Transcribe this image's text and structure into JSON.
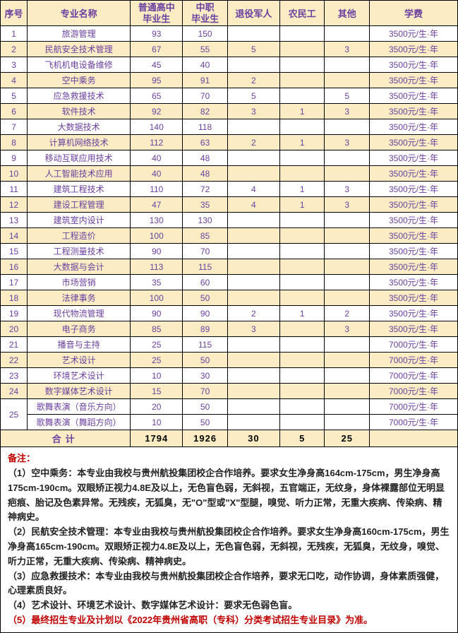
{
  "headers": {
    "idx": "序号",
    "name": "专业名称",
    "c1": "普通高中\n毕业生",
    "c2": "中职\n毕业生",
    "c3": "退役军人",
    "c4": "农民工",
    "c5": "其他",
    "fee": "学费"
  },
  "colors": {
    "header_bg": "#fbecc4",
    "header_text": "#6b3fa0",
    "odd_bg": "#fbecc4",
    "border": "#000000",
    "note_title": "#c00000"
  },
  "rows": [
    {
      "idx": "1",
      "name": "旅游管理",
      "c1": "93",
      "c2": "150",
      "c3": "",
      "c4": "",
      "c5": "",
      "fee": "3500元/生·年",
      "odd": false
    },
    {
      "idx": "2",
      "name": "民航安全技术管理",
      "c1": "67",
      "c2": "55",
      "c3": "5",
      "c4": "",
      "c5": "3",
      "fee": "3500元/生·年",
      "odd": true
    },
    {
      "idx": "3",
      "name": "飞机机电设备维修",
      "c1": "45",
      "c2": "40",
      "c3": "",
      "c4": "",
      "c5": "",
      "fee": "3500元/生·年",
      "odd": false
    },
    {
      "idx": "4",
      "name": "空中乘务",
      "c1": "95",
      "c2": "91",
      "c3": "2",
      "c4": "",
      "c5": "",
      "fee": "3500元/生·年",
      "odd": true
    },
    {
      "idx": "5",
      "name": "应急救援技术",
      "c1": "65",
      "c2": "70",
      "c3": "5",
      "c4": "",
      "c5": "5",
      "fee": "3500元/生·年",
      "odd": false
    },
    {
      "idx": "6",
      "name": "软件技术",
      "c1": "92",
      "c2": "82",
      "c3": "3",
      "c4": "1",
      "c5": "3",
      "fee": "3500元/生·年",
      "odd": true
    },
    {
      "idx": "7",
      "name": "大数据技术",
      "c1": "140",
      "c2": "118",
      "c3": "",
      "c4": "",
      "c5": "",
      "fee": "3500元/生·年",
      "odd": false
    },
    {
      "idx": "8",
      "name": "计算机网络技术",
      "c1": "112",
      "c2": "63",
      "c3": "2",
      "c4": "1",
      "c5": "3",
      "fee": "3500元/生·年",
      "odd": true
    },
    {
      "idx": "9",
      "name": "移动互联应用技术",
      "c1": "40",
      "c2": "48",
      "c3": "",
      "c4": "",
      "c5": "",
      "fee": "3500元/生·年",
      "odd": false
    },
    {
      "idx": "10",
      "name": "人工智能技术应用",
      "c1": "40",
      "c2": "48",
      "c3": "",
      "c4": "",
      "c5": "",
      "fee": "3500元/生·年",
      "odd": true
    },
    {
      "idx": "11",
      "name": "建筑工程技术",
      "c1": "110",
      "c2": "72",
      "c3": "4",
      "c4": "1",
      "c5": "3",
      "fee": "3500元/生·年",
      "odd": false
    },
    {
      "idx": "12",
      "name": "建设工程管理",
      "c1": "47",
      "c2": "35",
      "c3": "4",
      "c4": "1",
      "c5": "3",
      "fee": "3500元/生·年",
      "odd": true
    },
    {
      "idx": "13",
      "name": "建筑室内设计",
      "c1": "130",
      "c2": "130",
      "c3": "",
      "c4": "",
      "c5": "",
      "fee": "3500元/生·年",
      "odd": false
    },
    {
      "idx": "14",
      "name": "工程造价",
      "c1": "100",
      "c2": "85",
      "c3": "",
      "c4": "",
      "c5": "",
      "fee": "3500元/生·年",
      "odd": true
    },
    {
      "idx": "15",
      "name": "工程测量技术",
      "c1": "90",
      "c2": "70",
      "c3": "",
      "c4": "",
      "c5": "",
      "fee": "3500元/生·年",
      "odd": false
    },
    {
      "idx": "16",
      "name": "大数据与会计",
      "c1": "113",
      "c2": "115",
      "c3": "",
      "c4": "",
      "c5": "",
      "fee": "3500元/生·年",
      "odd": true
    },
    {
      "idx": "17",
      "name": "市场营销",
      "c1": "35",
      "c2": "60",
      "c3": "",
      "c4": "",
      "c5": "",
      "fee": "3500元/生·年",
      "odd": false
    },
    {
      "idx": "18",
      "name": "法律事务",
      "c1": "100",
      "c2": "50",
      "c3": "",
      "c4": "",
      "c5": "",
      "fee": "3500元/生·年",
      "odd": true
    },
    {
      "idx": "19",
      "name": "现代物流管理",
      "c1": "90",
      "c2": "90",
      "c3": "2",
      "c4": "1",
      "c5": "2",
      "fee": "3500元/生·年",
      "odd": false
    },
    {
      "idx": "20",
      "name": "电子商务",
      "c1": "85",
      "c2": "89",
      "c3": "3",
      "c4": "",
      "c5": "3",
      "fee": "3500元/生·年",
      "odd": true
    },
    {
      "idx": "21",
      "name": "播音与主持",
      "c1": "25",
      "c2": "115",
      "c3": "",
      "c4": "",
      "c5": "",
      "fee": "7000元/生·年",
      "odd": false
    },
    {
      "idx": "22",
      "name": "艺术设计",
      "c1": "25",
      "c2": "50",
      "c3": "",
      "c4": "",
      "c5": "",
      "fee": "7000元/生·年",
      "odd": true
    },
    {
      "idx": "23",
      "name": "环境艺术设计",
      "c1": "10",
      "c2": "30",
      "c3": "",
      "c4": "",
      "c5": "",
      "fee": "7000元/生·年",
      "odd": false
    },
    {
      "idx": "24",
      "name": "数字媒体艺术设计",
      "c1": "15",
      "c2": "70",
      "c3": "",
      "c4": "",
      "c5": "",
      "fee": "7000元/生·年",
      "odd": true
    }
  ],
  "merged_row": {
    "idx": "25",
    "rows": [
      {
        "name": "歌舞表演（音乐方向）",
        "c1": "20",
        "c2": "50",
        "c3": "",
        "c4": "",
        "c5": "",
        "fee": "7000元/生·年",
        "odd": false
      },
      {
        "name": "歌舞表演（舞蹈方向）",
        "c1": "10",
        "c2": "50",
        "c3": "",
        "c4": "",
        "c5": "",
        "fee": "7000元/生·年",
        "odd": false
      }
    ]
  },
  "total": {
    "label": "合计",
    "c1": "1794",
    "c2": "1926",
    "c3": "30",
    "c4": "5",
    "c5": "25",
    "fee": ""
  },
  "notes": {
    "title": "备注：",
    "n1": "（1）空中乘务：本专业由我校与贵州航投集团校企合作培养。要求女生净身高164cm-175cm，男生净身高175cm-190cm。双眼矫正视力4.8E及以上，无色盲色弱，无斜视，五官端正，无纹身，身体裸露部位无明显疤痕、胎记及色素异常。无残疾，无狐臭，无\"O\"型或\"X\"型腿，嗅觉、听力正常，无重大疾病、传染病、精神病史。",
    "n2": "（2）民航安全技术管理：本专业由我校与贵州航投集团校企合作培养。要求女生净身高160cm-175cm，男生净身高165cm-190cm。双眼矫正视力4.8E及以上，无色盲色弱，无斜视，无残疾，无狐臭，无纹身，嗅觉、听力正常，无重大疾病、传染病、精神病史。",
    "n3": "（3）应急救援技术：本专业由我校与贵州航投集团校企合作培养，要求无口吃，动作协调，身体素质强健，心理素质良好。",
    "n4": "（4）艺术设计、环境艺术设计、数字媒体艺术设计：要求无色弱色盲。",
    "n5": "（5）最终招生专业及计划以《2022年贵州省高职（专科）分类考试招生专业目录》为准。"
  }
}
